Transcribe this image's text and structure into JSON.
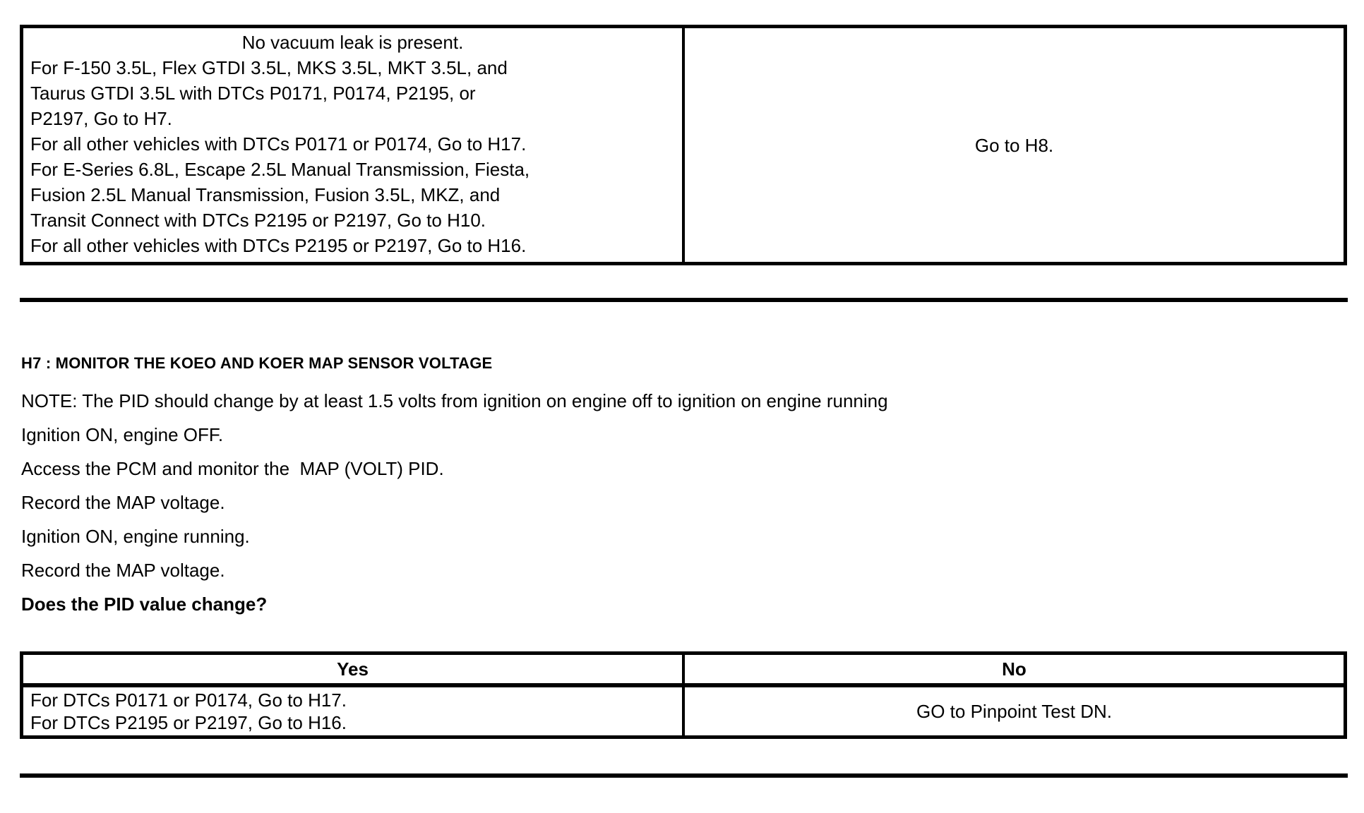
{
  "top_table": {
    "yes_cell_intro": "No vacuum leak is present.",
    "yes_cell_lines": [
      "For F-150 3.5L, Flex GTDI 3.5L, MKS 3.5L, MKT 3.5L, and",
      "Taurus GTDI 3.5L with DTCs P0171, P0174, P2195, or",
      "P2197, Go to H7.",
      "For all other vehicles with DTCs P0171 or P0174, Go to H17.",
      "For E-Series 6.8L, Escape 2.5L Manual Transmission, Fiesta,",
      "Fusion 2.5L Manual Transmission, Fusion 3.5L, MKZ, and",
      "Transit Connect with DTCs P2195 or P2197, Go to H10.",
      "For all other vehicles with DTCs P2195 or P2197, Go to H16."
    ],
    "no_cell_text": "Go to H8."
  },
  "section": {
    "heading": "H7 : MONITOR THE KOEO AND KOER MAP SENSOR VOLTAGE",
    "note": "NOTE: The PID should change by at least 1.5 volts from ignition on engine off to ignition on engine running",
    "steps": [
      "Ignition ON, engine OFF.",
      "Access the PCM and monitor the  MAP (VOLT) PID.",
      "Record the MAP voltage.",
      "Ignition ON, engine running.",
      "Record the MAP voltage."
    ],
    "question": "Does the PID value change?"
  },
  "bottom_table": {
    "headers": [
      "Yes",
      "No"
    ],
    "yes_lines": [
      "For DTCs P0171 or P0174, Go to H17.",
      "For DTCs P2195 or P2197, Go to H16."
    ],
    "no_text": "GO to Pinpoint Test DN."
  }
}
